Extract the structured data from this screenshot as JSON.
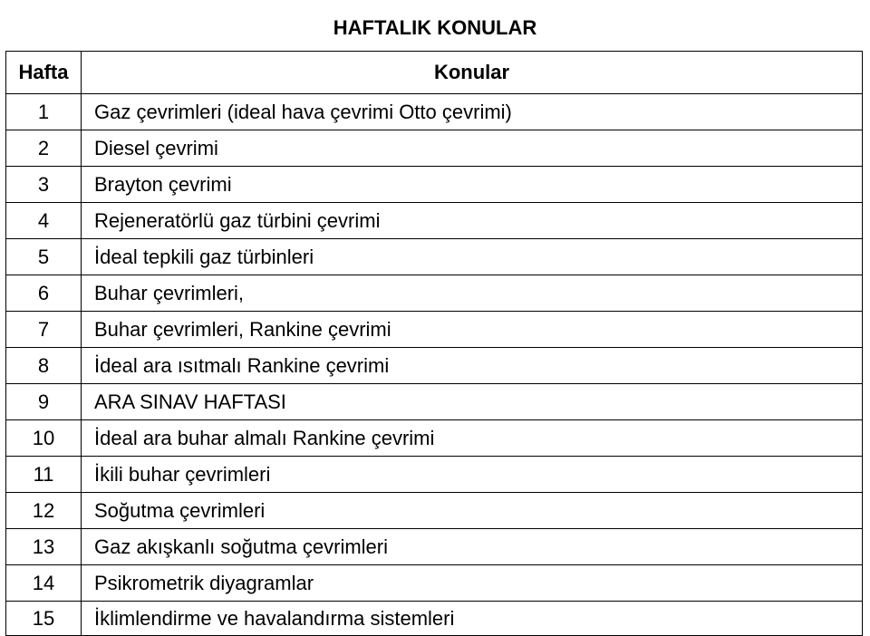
{
  "title": "HAFTALIK KONULAR",
  "headers": {
    "week": "Hafta",
    "topic": "Konular"
  },
  "rows": [
    {
      "n": "1",
      "t": "Gaz çevrimleri (ideal hava çevrimi Otto çevrimi)"
    },
    {
      "n": "2",
      "t": "Diesel çevrimi"
    },
    {
      "n": "3",
      "t": "Brayton çevrimi"
    },
    {
      "n": "4",
      "t": "Rejeneratörlü gaz türbini çevrimi"
    },
    {
      "n": "5",
      "t": "İdeal tepkili gaz türbinleri"
    },
    {
      "n": "6",
      "t": "Buhar çevrimleri,"
    },
    {
      "n": "7",
      "t": "Buhar çevrimleri, Rankine çevrimi"
    },
    {
      "n": "8",
      "t": "İdeal ara ısıtmalı Rankine çevrimi"
    },
    {
      "n": "9",
      "t": "ARA SINAV HAFTASI"
    },
    {
      "n": "10",
      "t": "İdeal ara buhar almalı Rankine çevrimi"
    },
    {
      "n": "11",
      "t": "İkili buhar çevrimleri"
    },
    {
      "n": "12",
      "t": "Soğutma çevrimleri"
    },
    {
      "n": "13",
      "t": "Gaz akışkanlı soğutma çevrimleri"
    },
    {
      "n": "14",
      "t": "Psikrometrik diyagramlar"
    },
    {
      "n": "15",
      "t": "İklimlendirme ve havalandırma sistemleri"
    }
  ],
  "colors": {
    "border": "#000000",
    "bg": "#ffffff",
    "text": "#000000"
  },
  "fonts": {
    "title_size": 22,
    "cell_size": 22,
    "family": "Arial"
  }
}
